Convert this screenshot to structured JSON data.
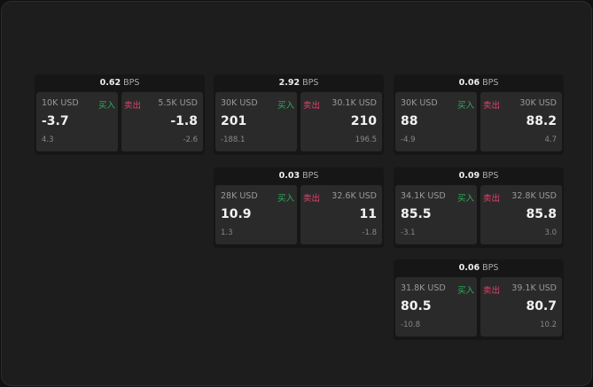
{
  "colors": {
    "buy": "#2fae5e",
    "sell": "#e0436b"
  },
  "buy_label": "买入",
  "sell_label": "卖出",
  "unit": "BPS",
  "cards": [
    {
      "spread": "0.62",
      "buy": {
        "size": "10K USD",
        "price": "-3.7",
        "change": "4.3"
      },
      "sell": {
        "size": "5.5K USD",
        "price": "-1.8",
        "change": "-2.6"
      }
    },
    {
      "spread": "2.92",
      "buy": {
        "size": "30K USD",
        "price": "201",
        "change": "-188.1"
      },
      "sell": {
        "size": "30.1K USD",
        "price": "210",
        "change": "196.5"
      }
    },
    {
      "spread": "0.06",
      "buy": {
        "size": "30K USD",
        "price": "88",
        "change": "-4.9"
      },
      "sell": {
        "size": "30K USD",
        "price": "88.2",
        "change": "4.7"
      }
    },
    {
      "spread": "0.03",
      "buy": {
        "size": "28K USD",
        "price": "10.9",
        "change": "1.3"
      },
      "sell": {
        "size": "32.6K USD",
        "price": "11",
        "change": "-1.8"
      }
    },
    {
      "spread": "0.09",
      "buy": {
        "size": "34.1K USD",
        "price": "85.5",
        "change": "-3.1"
      },
      "sell": {
        "size": "32.8K USD",
        "price": "85.8",
        "change": "3.0"
      }
    },
    {
      "spread": "0.06",
      "buy": {
        "size": "31.8K USD",
        "price": "80.5",
        "change": "-10.8"
      },
      "sell": {
        "size": "39.1K USD",
        "price": "80.7",
        "change": "10.2"
      }
    }
  ]
}
